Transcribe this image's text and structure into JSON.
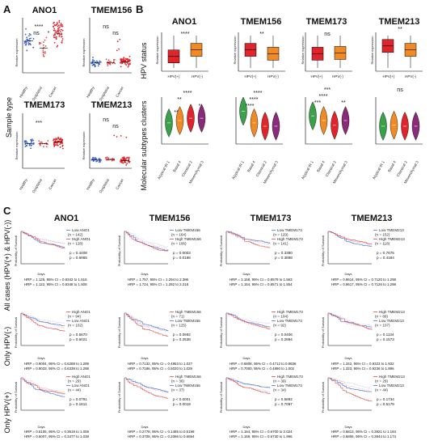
{
  "panels": {
    "A": "A",
    "B": "B",
    "C": "C"
  },
  "panel_a": {
    "row_title": "Sample type",
    "ylabel": "Relative expression",
    "groups": [
      "Healthy",
      "Dysplasia",
      "Cancer"
    ],
    "plots": [
      {
        "title": "ANO1",
        "sig": [
          "****",
          "ns",
          "*"
        ]
      },
      {
        "title": "TMEM156",
        "sig": [
          "ns",
          "ns",
          ""
        ]
      },
      {
        "title": "TMEM173",
        "sig": [
          "***",
          "",
          ""
        ]
      },
      {
        "title": "TMEM213",
        "sig": [
          "ns",
          "ns",
          ""
        ]
      }
    ]
  },
  "panel_b": {
    "row1_title": "HPV status",
    "row2_title": "Molecular subtypes clusters",
    "ylabel": "Relative expression",
    "hpv_groups": [
      "HPV(+)",
      "HPV(-)"
    ],
    "subtypes": [
      "Atypical IR 1",
      "Basal 4",
      "Classical 2",
      "Mesenchymal 3"
    ],
    "plots": [
      {
        "title": "ANO1",
        "hpv_sig": "****",
        "clu_sig": [
          "****",
          "**",
          "*",
          "**"
        ]
      },
      {
        "title": "TMEM156",
        "hpv_sig": "**",
        "clu_sig": [
          "****",
          "****",
          "****",
          ""
        ]
      },
      {
        "title": "TMEM173",
        "hpv_sig": "ns",
        "clu_sig": [
          "***",
          "****",
          "***",
          "**"
        ]
      },
      {
        "title": "TMEM213",
        "hpv_sig": "**",
        "clu_sig": [
          "ns",
          "",
          "",
          ""
        ]
      }
    ]
  },
  "panel_c": {
    "row_titles": [
      "All cases (HPV(+) & HPV(-))",
      "Only HPV(-)",
      "Only HPV(+)"
    ],
    "xlabel": "Days",
    "ylabel": "Probability of Survival",
    "cols": [
      "ANO1",
      "TMEM156",
      "TMEM173",
      "TMEM213"
    ],
    "cells": [
      [
        {
          "legend": [
            "Low ANO1",
            "(n = 142)",
            "High ANO1",
            "(n = 128)"
          ],
          "p1": "p = 0.4408",
          "p2": "p = 0.6965",
          "s1": "HRP = 1.125, 95% CI = 0.8342 to 1.516",
          "s2": "HRP = 1.122, 95% CI = 0.8348 to 1.508"
        },
        {
          "legend": [
            "Low TMEM156",
            "(n = 164)",
            "High TMEM156",
            "(n = 106)"
          ],
          "p1": "p = 0.0003",
          "p2": "p = 0.0188",
          "s1": "HRP = 1.757, 95% CI = 1.294 to 2.386",
          "s2": "HRP = 1.724, 95% CI = 1.282 to 2.318"
        },
        {
          "legend": [
            "Low TMEM173",
            "(n = 129)",
            "High TMEM173",
            "(n = 141)"
          ],
          "p1": "p = 0.3380",
          "p2": "p = 0.3898",
          "s1": "HRP = 1.158, 95% CI = 0.8579 to 1.563",
          "s2": "HRP = 1.154, 95% CI = 0.8571 to 1.554"
        },
        {
          "legend": [
            "Low TMEM213",
            "(n = 152)",
            "High TMEM213",
            "(n = 118)"
          ],
          "p1": "p = 0.7675",
          "p2": "p = 0.4184",
          "s1": "HRP = 0.9614, 95% CI = 0.7120 to 1.298",
          "s2": "HRP = 0.9617, 95% CI = 0.7126 to 1.298"
        }
      ],
      [
        {
          "legend": [
            "High ANO1",
            "(n = 94)",
            "Low ANO1",
            "(n = 102)"
          ],
          "p1": "p = 0.5670",
          "p2": "p = 0.6021",
          "s1": "HRP = 0.9004, 95% CI = 0.6288 to 1.289",
          "s2": "HRP = 0.9033, 95% CI = 0.6338 to 1.288"
        },
        {
          "legend": [
            "High TMEM156",
            "(n = 71)",
            "Low TMEM156",
            "(n = 125)"
          ],
          "p1": "p = 0.0692",
          "p2": "p = 0.2538",
          "s1": "HRP = 0.7132, 95% CI = 0.4953 to 1.027",
          "s2": "HRP = 0.7186, 95% CI = 0.5020 to 1.029"
        },
        {
          "legend": [
            "High TMEM173",
            "(n = 104)",
            "Low TMEM173",
            "(n = 92)"
          ],
          "p1": "p = 0.0406",
          "p2": "p = 0.2894",
          "s1": "HRP = 0.6808, 95% CI = 0.4712 to 0.9836",
          "s2": "HRP = 0.7000, 95% CI = 0.4890 to 1.002"
        },
        {
          "legend": [
            "High TMEM213",
            "(n = 89)",
            "Low TMEM213",
            "(n = 107)"
          ],
          "p1": "p = 0.1134",
          "p2": "p = 0.1573",
          "s1": "HRP = 1.342, 95% CI = 0.9323 to 1.932",
          "s2": "HRP = 1.323, 95% CI = 0.9236 to 1.896"
        }
      ],
      [
        {
          "legend": [
            "High ANO1",
            "(n = 29)",
            "Low ANO1",
            "(n = 44)"
          ],
          "p1": "p = 0.0791",
          "p2": "p = 0.1811",
          "s1": "HRP = 0.6105, 95% CI = 0.3519 to 1.059",
          "s2": "HRP = 0.6007, 95% CI = 0.3477 to 1.038"
        },
        {
          "legend": [
            "High TMEM156",
            "(n = 36)",
            "Low TMEM156",
            "(n = 37)"
          ],
          "p1": "p < 0.0001",
          "p2": "p = 0.0019",
          "s1": "HRP = 0.2778, 95% CI = 0.1485 to 0.5198",
          "s2": "HRP = 0.3709, 95% CI = 0.2086 to 0.6594"
        },
        {
          "legend": [
            "High TMEM173",
            "(n = 39)",
            "Low TMEM173",
            "(n = 34)"
          ],
          "p1": "p = 0.5892",
          "p2": "p = 0.7097",
          "s1": "HRP = 1.164, 95% CI = 0.6700 to 2.024",
          "s2": "HRP = 1.159, 95% CI = 0.6730 to 1.996"
        },
        {
          "legend": [
            "High TMEM213",
            "(n = 29)",
            "Low TMEM213",
            "(n = 44)"
          ],
          "p1": "p = 0.1734",
          "p2": "p = 0.5179",
          "s1": "HRP = 0.6813, 95% CI = 0.3921 to 1.184",
          "s2": "HRP = 0.6806, 95% CI = 0.3944 to 1.174"
        }
      ]
    ]
  },
  "colors": {
    "blue": "#3a5fcd",
    "orange": "#f08a24",
    "red": "#e0242c",
    "green": "#3aa14a",
    "pink": "#e04a4a",
    "lblue": "#4a6fd8"
  }
}
